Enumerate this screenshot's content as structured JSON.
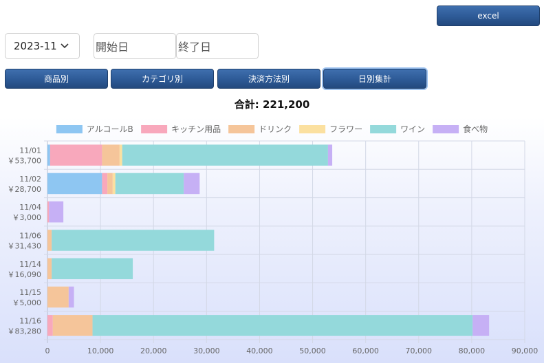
{
  "toolbar": {
    "excel_label": "excel"
  },
  "filters": {
    "month_value": "2023-11",
    "start_placeholder": "開始日",
    "end_placeholder": "終了日"
  },
  "tabs": [
    {
      "label": "商品別"
    },
    {
      "label": "カテゴリ別"
    },
    {
      "label": "決済方法別"
    },
    {
      "label": "日別集計",
      "active": true
    }
  ],
  "summary": {
    "total_label": "合計: 221,200"
  },
  "chart_data": {
    "type": "bar",
    "orientation": "horizontal",
    "stacked": true,
    "categories": [
      "11/01",
      "11/02",
      "11/04",
      "11/06",
      "11/14",
      "11/15",
      "11/16"
    ],
    "category_totals": [
      "￥53,700",
      "￥28,700",
      "￥3,000",
      "￥31,430",
      "￥16,090",
      "￥5,000",
      "￥83,280"
    ],
    "series": [
      {
        "name": "アルコールB",
        "color": "#8ec6f2",
        "values": [
          500,
          10300,
          0,
          0,
          0,
          0,
          0
        ]
      },
      {
        "name": "キッチン用品",
        "color": "#f8a8bc",
        "values": [
          9800,
          1000,
          300,
          0,
          0,
          0,
          1000
        ]
      },
      {
        "name": "ドリンク",
        "color": "#f5c59a",
        "values": [
          3300,
          1000,
          0,
          800,
          800,
          4000,
          7500
        ]
      },
      {
        "name": "フラワー",
        "color": "#fbe0a0",
        "values": [
          500,
          500,
          0,
          0,
          0,
          0,
          0
        ]
      },
      {
        "name": "ワイン",
        "color": "#94d9db",
        "values": [
          38800,
          12900,
          0,
          30630,
          15290,
          0,
          71680
        ]
      },
      {
        "name": "食べ物",
        "color": "#c6b0f5",
        "values": [
          800,
          3000,
          2700,
          0,
          0,
          1000,
          3100
        ]
      }
    ],
    "xlim": [
      0,
      90000
    ],
    "x_ticks": [
      0,
      10000,
      20000,
      30000,
      40000,
      50000,
      60000,
      70000,
      80000,
      90000
    ],
    "x_tick_labels": [
      "0",
      "10,000",
      "20,000",
      "30,000",
      "40,000",
      "50,000",
      "60,000",
      "70,000",
      "80,000",
      "90,000"
    ],
    "grid": true,
    "legend_position": "top"
  }
}
